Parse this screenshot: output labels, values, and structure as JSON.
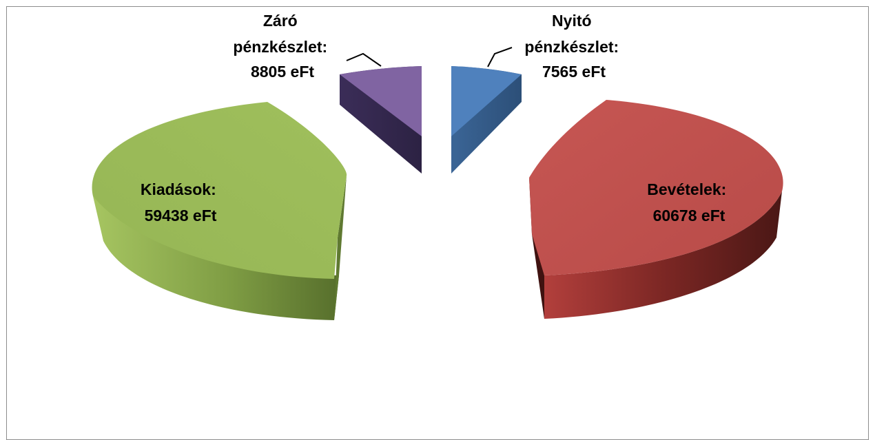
{
  "chart_data": {
    "type": "pie",
    "style": "3d-exploded",
    "title": "",
    "legend": "none",
    "slices": [
      {
        "label_lines": [
          "Nyitó",
          "pénzkészlet:",
          "7565 eFt"
        ],
        "category": "Nyitó pénzkészlet",
        "value": 7565,
        "unit": "eFt",
        "color": "#4f81bd"
      },
      {
        "label_lines": [
          "Bevételek:",
          "60678 eFt"
        ],
        "category": "Bevételek",
        "value": 60678,
        "unit": "eFt",
        "color": "#c0504d"
      },
      {
        "label_lines": [
          "Kiadások:",
          "59438 eFt"
        ],
        "category": "Kiadások",
        "value": 59438,
        "unit": "eFt",
        "color": "#9bbb59"
      },
      {
        "label_lines": [
          "Záró",
          "pénzkészlet:",
          "8805 eFt"
        ],
        "category": "Záró pénzkészlet",
        "value": 8805,
        "unit": "eFt",
        "color": "#8064a2"
      }
    ]
  }
}
